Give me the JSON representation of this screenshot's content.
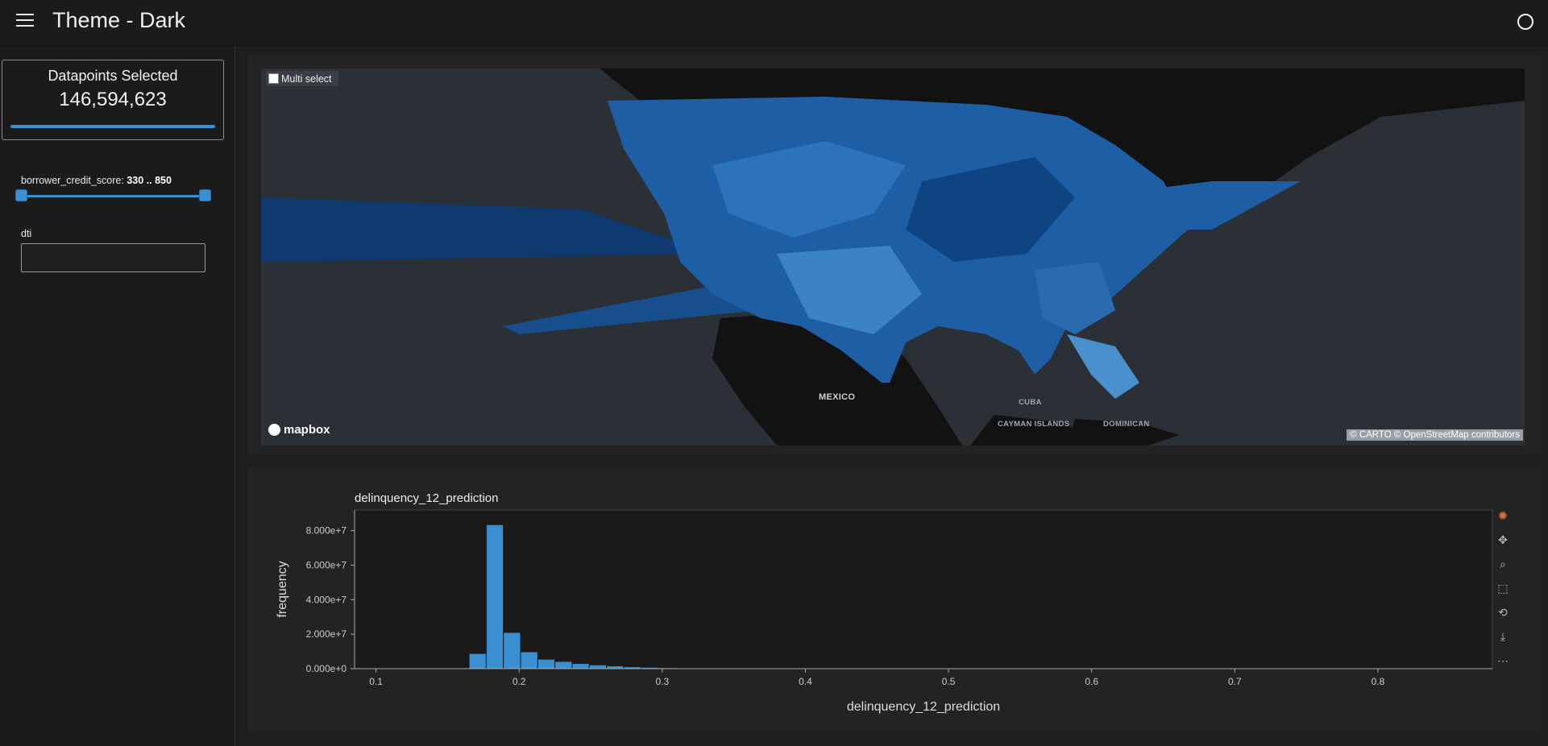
{
  "header": {
    "title": "Theme - Dark"
  },
  "sidebar": {
    "kpi": {
      "label": "Datapoints Selected",
      "value": "146,594,623",
      "fill_fraction": 1.0
    },
    "slider": {
      "name": "borrower_credit_score:",
      "range": "330 .. 850",
      "min": 330,
      "max": 850
    },
    "dti": {
      "label": "dti",
      "value": ""
    }
  },
  "map": {
    "multi_select_label": "Multi select",
    "labels": {
      "mexico": "MEXICO",
      "cuba": "CUBA",
      "cayman": "CAYMAN ISLANDS",
      "dominican": "DOMINICAN"
    },
    "logo": "mapbox",
    "attribution": "© CARTO  © OpenStreetMap contributors"
  },
  "chart_data": {
    "type": "bar",
    "title": "delinquency_12_prediction",
    "xlabel": "delinquency_12_prediction",
    "ylabel": "frequency",
    "xlim": [
      0.085,
      0.88
    ],
    "ylim": [
      0,
      92000000
    ],
    "xticks": [
      0.1,
      0.2,
      0.3,
      0.4,
      0.5,
      0.6,
      0.7,
      0.8
    ],
    "xtick_labels": [
      "0.1",
      "0.2",
      "0.3",
      "0.4",
      "0.5",
      "0.6",
      "0.7",
      "0.8"
    ],
    "yticks": [
      0,
      20000000,
      40000000,
      60000000,
      80000000
    ],
    "ytick_labels": [
      "0.000e+0",
      "2.000e+7",
      "4.000e+7",
      "6.000e+7",
      "8.000e+7"
    ],
    "bins": [
      {
        "x0": 0.165,
        "x1": 0.177,
        "value": 8800000
      },
      {
        "x0": 0.177,
        "x1": 0.189,
        "value": 83500000
      },
      {
        "x0": 0.189,
        "x1": 0.201,
        "value": 21000000
      },
      {
        "x0": 0.201,
        "x1": 0.213,
        "value": 9800000
      },
      {
        "x0": 0.213,
        "x1": 0.225,
        "value": 5500000
      },
      {
        "x0": 0.225,
        "x1": 0.237,
        "value": 4200000
      },
      {
        "x0": 0.237,
        "x1": 0.249,
        "value": 3000000
      },
      {
        "x0": 0.249,
        "x1": 0.261,
        "value": 2200000
      },
      {
        "x0": 0.261,
        "x1": 0.273,
        "value": 1600000
      },
      {
        "x0": 0.273,
        "x1": 0.285,
        "value": 1100000
      },
      {
        "x0": 0.285,
        "x1": 0.297,
        "value": 800000
      },
      {
        "x0": 0.297,
        "x1": 0.309,
        "value": 550000
      },
      {
        "x0": 0.309,
        "x1": 0.321,
        "value": 350000
      },
      {
        "x0": 0.321,
        "x1": 0.333,
        "value": 220000
      }
    ],
    "bar_color": "#3a8fd1",
    "grid": false
  },
  "toolbar": {
    "icons": [
      "bokeh-logo-icon",
      "pan-icon",
      "box-zoom-icon",
      "box-select-icon",
      "reset-icon",
      "save-icon",
      "more-icon"
    ]
  }
}
